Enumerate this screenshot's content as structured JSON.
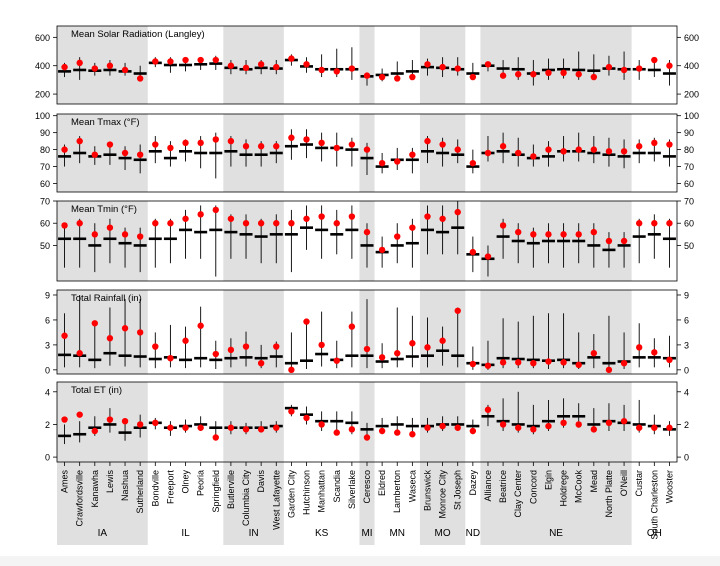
{
  "colors": {
    "shade": "#e0e0e0",
    "mean_marker": "#000000",
    "obs_point": "#ff0000",
    "range_line": "#000000",
    "frame": "#000000"
  },
  "chart_data": {
    "type": "scatter",
    "stations": [
      "Ames",
      "Crawfordsville",
      "Kanawha",
      "Lewis",
      "Nashua",
      "Sutherland",
      "Bondville",
      "Freeport",
      "Olney",
      "Peoria",
      "Springfield",
      "Butlerville",
      "Columbia City",
      "Davis",
      "West Lafayette",
      "Garden City",
      "Hutchinson",
      "Manhattan",
      "Scandia",
      "Silverlake",
      "Ceresco",
      "Eldred",
      "Lamberton",
      "Waseca",
      "Brunswick",
      "Monroe City",
      "St Joseph",
      "Dazey",
      "Alliance",
      "Beatrice",
      "Clay Center",
      "Concord",
      "Elgin",
      "Holdrege",
      "McCook",
      "Mead",
      "North Platte",
      "O'Neill",
      "Custar",
      "South Charleston",
      "Wooster"
    ],
    "states": [
      {
        "label": "IA",
        "start": 0,
        "end": 5,
        "shaded": true
      },
      {
        "label": "IL",
        "start": 6,
        "end": 10,
        "shaded": false
      },
      {
        "label": "IN",
        "start": 11,
        "end": 14,
        "shaded": true
      },
      {
        "label": "KS",
        "start": 15,
        "end": 19,
        "shaded": false
      },
      {
        "label": "MI",
        "start": 20,
        "end": 20,
        "shaded": true
      },
      {
        "label": "MN",
        "start": 21,
        "end": 23,
        "shaded": false
      },
      {
        "label": "MO",
        "start": 24,
        "end": 26,
        "shaded": true
      },
      {
        "label": "ND",
        "start": 27,
        "end": 27,
        "shaded": false
      },
      {
        "label": "NE",
        "start": 28,
        "end": 37,
        "shaded": true
      },
      {
        "label": "OH",
        "start": 38,
        "end": 40,
        "shaded": false
      }
    ],
    "panels": [
      {
        "title": "Mean Solar Radiation (Langley)",
        "ylim": [
          130,
          680
        ],
        "ticks": [
          200,
          400,
          600
        ],
        "mean": [
          360,
          370,
          365,
          370,
          360,
          345,
          420,
          405,
          405,
          410,
          415,
          385,
          375,
          385,
          380,
          440,
          395,
          375,
          375,
          375,
          325,
          335,
          345,
          360,
          390,
          385,
          375,
          345,
          400,
          380,
          375,
          345,
          370,
          375,
          370,
          365,
          380,
          375,
          375,
          370,
          345
        ],
        "point": [
          390,
          420,
          380,
          400,
          370,
          310,
          430,
          430,
          440,
          440,
          440,
          400,
          385,
          410,
          390,
          450,
          410,
          370,
          360,
          380,
          330,
          320,
          310,
          320,
          410,
          390,
          380,
          320,
          410,
          330,
          340,
          340,
          350,
          350,
          340,
          320,
          390,
          370,
          380,
          440,
          400
        ],
        "low": [
          320,
          300,
          330,
          330,
          330,
          290,
          390,
          350,
          360,
          370,
          370,
          340,
          340,
          340,
          340,
          400,
          350,
          320,
          320,
          300,
          260,
          290,
          290,
          300,
          330,
          320,
          330,
          310,
          360,
          320,
          300,
          260,
          300,
          310,
          300,
          300,
          330,
          300,
          300,
          320,
          260
        ],
        "high": [
          420,
          460,
          420,
          440,
          420,
          400,
          460,
          460,
          460,
          460,
          470,
          440,
          440,
          440,
          440,
          480,
          460,
          480,
          520,
          530,
          350,
          380,
          430,
          440,
          450,
          460,
          460,
          420,
          430,
          440,
          460,
          440,
          450,
          450,
          500,
          480,
          470,
          500,
          440,
          460,
          440
        ]
      },
      {
        "title": "Mean Tmax (°F)",
        "ylim": [
          55,
          101
        ],
        "ticks": [
          60,
          70,
          80,
          90,
          100
        ],
        "mean": [
          76,
          78,
          76,
          77,
          75,
          74,
          79,
          75,
          79,
          78,
          78,
          79,
          77,
          77,
          78,
          82,
          83,
          81,
          81,
          80,
          75,
          70,
          74,
          74,
          79,
          78,
          77,
          70,
          78,
          79,
          77,
          75,
          76,
          79,
          79,
          78,
          77,
          76,
          78,
          78,
          76
        ],
        "point": [
          80,
          85,
          77,
          83,
          78,
          77,
          83,
          81,
          84,
          84,
          86,
          85,
          82,
          82,
          82,
          87,
          86,
          84,
          81,
          83,
          80,
          72,
          73,
          77,
          85,
          83,
          80,
          72,
          78,
          82,
          78,
          76,
          80,
          79,
          80,
          80,
          79,
          79,
          82,
          84,
          83
        ],
        "low": [
          70,
          72,
          71,
          71,
          68,
          66,
          72,
          70,
          73,
          69,
          63,
          70,
          70,
          70,
          72,
          74,
          75,
          73,
          70,
          70,
          65,
          66,
          68,
          66,
          72,
          70,
          72,
          66,
          73,
          72,
          70,
          70,
          70,
          73,
          73,
          72,
          70,
          69,
          72,
          73,
          70
        ],
        "high": [
          83,
          88,
          82,
          84,
          82,
          83,
          88,
          85,
          86,
          88,
          90,
          88,
          86,
          85,
          85,
          92,
          92,
          90,
          90,
          87,
          84,
          78,
          81,
          81,
          88,
          87,
          86,
          80,
          88,
          90,
          87,
          83,
          85,
          88,
          90,
          88,
          87,
          86,
          86,
          87,
          86
        ]
      },
      {
        "title": "Mean Tmin (°F)",
        "ylim": [
          34,
          70
        ],
        "ticks": [
          50,
          60,
          70
        ],
        "mean": [
          53,
          53,
          50,
          53,
          51,
          50,
          53,
          53,
          57,
          56,
          57,
          56,
          55,
          54,
          55,
          55,
          58,
          57,
          55,
          57,
          50,
          47,
          50,
          51,
          57,
          56,
          58,
          46,
          44,
          54,
          52,
          51,
          52,
          52,
          52,
          50,
          48,
          50,
          54,
          55,
          53
        ],
        "point": [
          59,
          60,
          55,
          58,
          55,
          54,
          60,
          60,
          62,
          64,
          66,
          62,
          60,
          60,
          60,
          60,
          62,
          63,
          60,
          63,
          56,
          48,
          54,
          58,
          63,
          62,
          65,
          47,
          45,
          59,
          56,
          55,
          55,
          55,
          55,
          56,
          52,
          52,
          60,
          60,
          60
        ],
        "low": [
          40,
          40,
          38,
          42,
          40,
          38,
          40,
          42,
          44,
          44,
          36,
          44,
          44,
          42,
          42,
          38,
          48,
          44,
          46,
          44,
          40,
          40,
          42,
          40,
          46,
          46,
          46,
          38,
          36,
          44,
          42,
          40,
          42,
          40,
          42,
          40,
          40,
          40,
          42,
          44,
          40
        ],
        "high": [
          60,
          62,
          60,
          62,
          58,
          58,
          62,
          62,
          66,
          68,
          68,
          64,
          64,
          62,
          64,
          66,
          68,
          68,
          66,
          68,
          60,
          54,
          60,
          62,
          68,
          68,
          70,
          54,
          50,
          62,
          60,
          58,
          60,
          60,
          60,
          60,
          56,
          56,
          62,
          64,
          62
        ]
      },
      {
        "title": "Total Rainfall (in)",
        "ylim": [
          -0.5,
          9.6
        ],
        "ticks": [
          0,
          3,
          6,
          9
        ],
        "mean": [
          1.8,
          1.7,
          1.2,
          2.0,
          1.7,
          1.6,
          1.3,
          1.5,
          1.2,
          1.4,
          1.2,
          1.4,
          1.5,
          1.4,
          1.6,
          0.8,
          1.1,
          1.9,
          1.2,
          1.7,
          1.7,
          1.0,
          1.3,
          1.6,
          1.7,
          2.3,
          1.7,
          0.8,
          0.6,
          1.4,
          1.3,
          1.2,
          1.1,
          1.2,
          0.8,
          1.5,
          0.8,
          1.0,
          1.5,
          1.5,
          1.4
        ],
        "point": [
          4.1,
          2.0,
          5.6,
          3.8,
          5.0,
          4.5,
          2.8,
          1.4,
          3.5,
          5.3,
          1.9,
          2.4,
          2.8,
          0.8,
          2.8,
          0.0,
          5.8,
          3.0,
          1.1,
          5.2,
          2.5,
          1.5,
          2.0,
          3.2,
          2.7,
          3.5,
          7.1,
          0.7,
          0.5,
          0.9,
          0.9,
          0.8,
          1.0,
          0.9,
          0.6,
          2.0,
          0.0,
          0.8,
          2.7,
          2.1,
          1.2
        ],
        "low": [
          0.3,
          0.3,
          0.2,
          0.5,
          0.4,
          0.3,
          0.2,
          0.3,
          0.2,
          0.3,
          0.1,
          0.3,
          0.4,
          0.2,
          0.3,
          0.0,
          0.1,
          0.4,
          0.2,
          0.3,
          0.2,
          0.2,
          0.3,
          0.3,
          0.3,
          0.5,
          0.3,
          0.0,
          0.0,
          0.2,
          0.2,
          0.2,
          0.1,
          0.2,
          0.1,
          0.2,
          0.0,
          0.1,
          0.3,
          0.3,
          0.3
        ],
        "high": [
          6.8,
          9.0,
          5.8,
          7.5,
          8.5,
          8.5,
          4.5,
          5.4,
          5.2,
          7.6,
          3.5,
          3.8,
          4.6,
          3.0,
          3.4,
          4.5,
          6.0,
          7.0,
          3.5,
          7.0,
          8.5,
          3.2,
          7.5,
          6.5,
          6.3,
          5.2,
          7.5,
          2.8,
          3.5,
          6.2,
          5.8,
          6.5,
          6.8,
          6.8,
          4.5,
          4.3,
          6.5,
          4.5,
          5.6,
          3.8,
          4.1
        ]
      },
      {
        "title": "Total ET (in)",
        "ylim": [
          -0.3,
          4.6
        ],
        "ticks": [
          0,
          2,
          4
        ],
        "mean": [
          1.3,
          1.4,
          1.8,
          2.0,
          1.5,
          1.8,
          2.1,
          1.8,
          1.9,
          2.0,
          1.8,
          1.8,
          1.8,
          1.8,
          1.9,
          3.0,
          2.6,
          2.2,
          2.2,
          2.1,
          1.7,
          1.9,
          2.0,
          1.9,
          1.9,
          2.0,
          2.0,
          1.9,
          2.5,
          2.2,
          2.0,
          1.9,
          2.2,
          2.5,
          2.5,
          2.0,
          2.2,
          2.1,
          2.0,
          1.9,
          1.7
        ],
        "point": [
          2.3,
          2.6,
          1.6,
          2.3,
          2.2,
          2.0,
          2.1,
          1.8,
          1.8,
          1.8,
          1.2,
          1.8,
          1.7,
          1.7,
          1.8,
          2.8,
          2.4,
          2.0,
          1.5,
          1.7,
          1.2,
          1.6,
          1.5,
          1.4,
          1.8,
          1.9,
          1.8,
          1.6,
          2.9,
          2.0,
          1.8,
          1.7,
          1.9,
          2.1,
          2.0,
          1.7,
          2.1,
          2.2,
          1.8,
          1.8,
          1.8
        ],
        "low": [
          0.8,
          0.9,
          1.3,
          1.5,
          1.0,
          1.2,
          1.7,
          1.3,
          1.5,
          1.6,
          1.3,
          1.4,
          1.4,
          1.5,
          1.5,
          2.5,
          2.0,
          1.6,
          1.6,
          1.4,
          1.2,
          1.4,
          1.5,
          1.4,
          1.5,
          1.6,
          1.6,
          1.4,
          1.9,
          1.6,
          1.5,
          1.4,
          1.6,
          1.8,
          1.8,
          1.5,
          1.6,
          1.6,
          1.5,
          1.4,
          1.3
        ],
        "high": [
          2.0,
          2.2,
          2.5,
          3.0,
          2.3,
          2.6,
          2.4,
          2.2,
          2.3,
          2.5,
          2.2,
          2.2,
          2.1,
          2.2,
          2.2,
          3.2,
          3.1,
          2.8,
          2.8,
          2.8,
          2.1,
          2.4,
          2.5,
          2.4,
          2.4,
          2.5,
          2.5,
          2.3,
          3.2,
          3.6,
          4.0,
          3.2,
          3.5,
          3.6,
          3.3,
          3.0,
          3.3,
          3.2,
          3.5,
          2.6,
          2.2
        ]
      }
    ]
  }
}
